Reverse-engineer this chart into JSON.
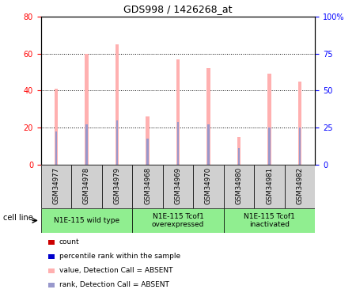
{
  "title": "GDS998 / 1426268_at",
  "samples": [
    "GSM34977",
    "GSM34978",
    "GSM34979",
    "GSM34968",
    "GSM34969",
    "GSM34970",
    "GSM34980",
    "GSM34981",
    "GSM34982"
  ],
  "pink_values": [
    41,
    60,
    65,
    26,
    57,
    52,
    15,
    49,
    45
  ],
  "blue_values": [
    18,
    22,
    24,
    14,
    23,
    22,
    9,
    20,
    20
  ],
  "groups": [
    {
      "label": "N1E-115 wild type",
      "indices": [
        0,
        1,
        2
      ]
    },
    {
      "label": "N1E-115 Tcof1\noverexpressed",
      "indices": [
        3,
        4,
        5
      ]
    },
    {
      "label": "N1E-115 Tcof1\ninactivated",
      "indices": [
        6,
        7,
        8
      ]
    }
  ],
  "ylim_left": [
    0,
    80
  ],
  "ylim_right": [
    0,
    100
  ],
  "yticks_left": [
    0,
    20,
    40,
    60,
    80
  ],
  "yticks_right": [
    0,
    25,
    50,
    75,
    100
  ],
  "yticklabels_right": [
    "0",
    "25",
    "50",
    "75",
    "100%"
  ],
  "pink_bar_color": "#FFB0B0",
  "blue_bar_color": "#9898CC",
  "group_bg_color": "#90EE90",
  "label_bg_color": "#C8C8C8",
  "legend_items": [
    {
      "color": "#CC0000",
      "label": "count"
    },
    {
      "color": "#0000CC",
      "label": "percentile rank within the sample"
    },
    {
      "color": "#FFB0B0",
      "label": "value, Detection Call = ABSENT"
    },
    {
      "color": "#9898CC",
      "label": "rank, Detection Call = ABSENT"
    }
  ],
  "bar_width": 0.12,
  "cell_line_label": "cell line"
}
